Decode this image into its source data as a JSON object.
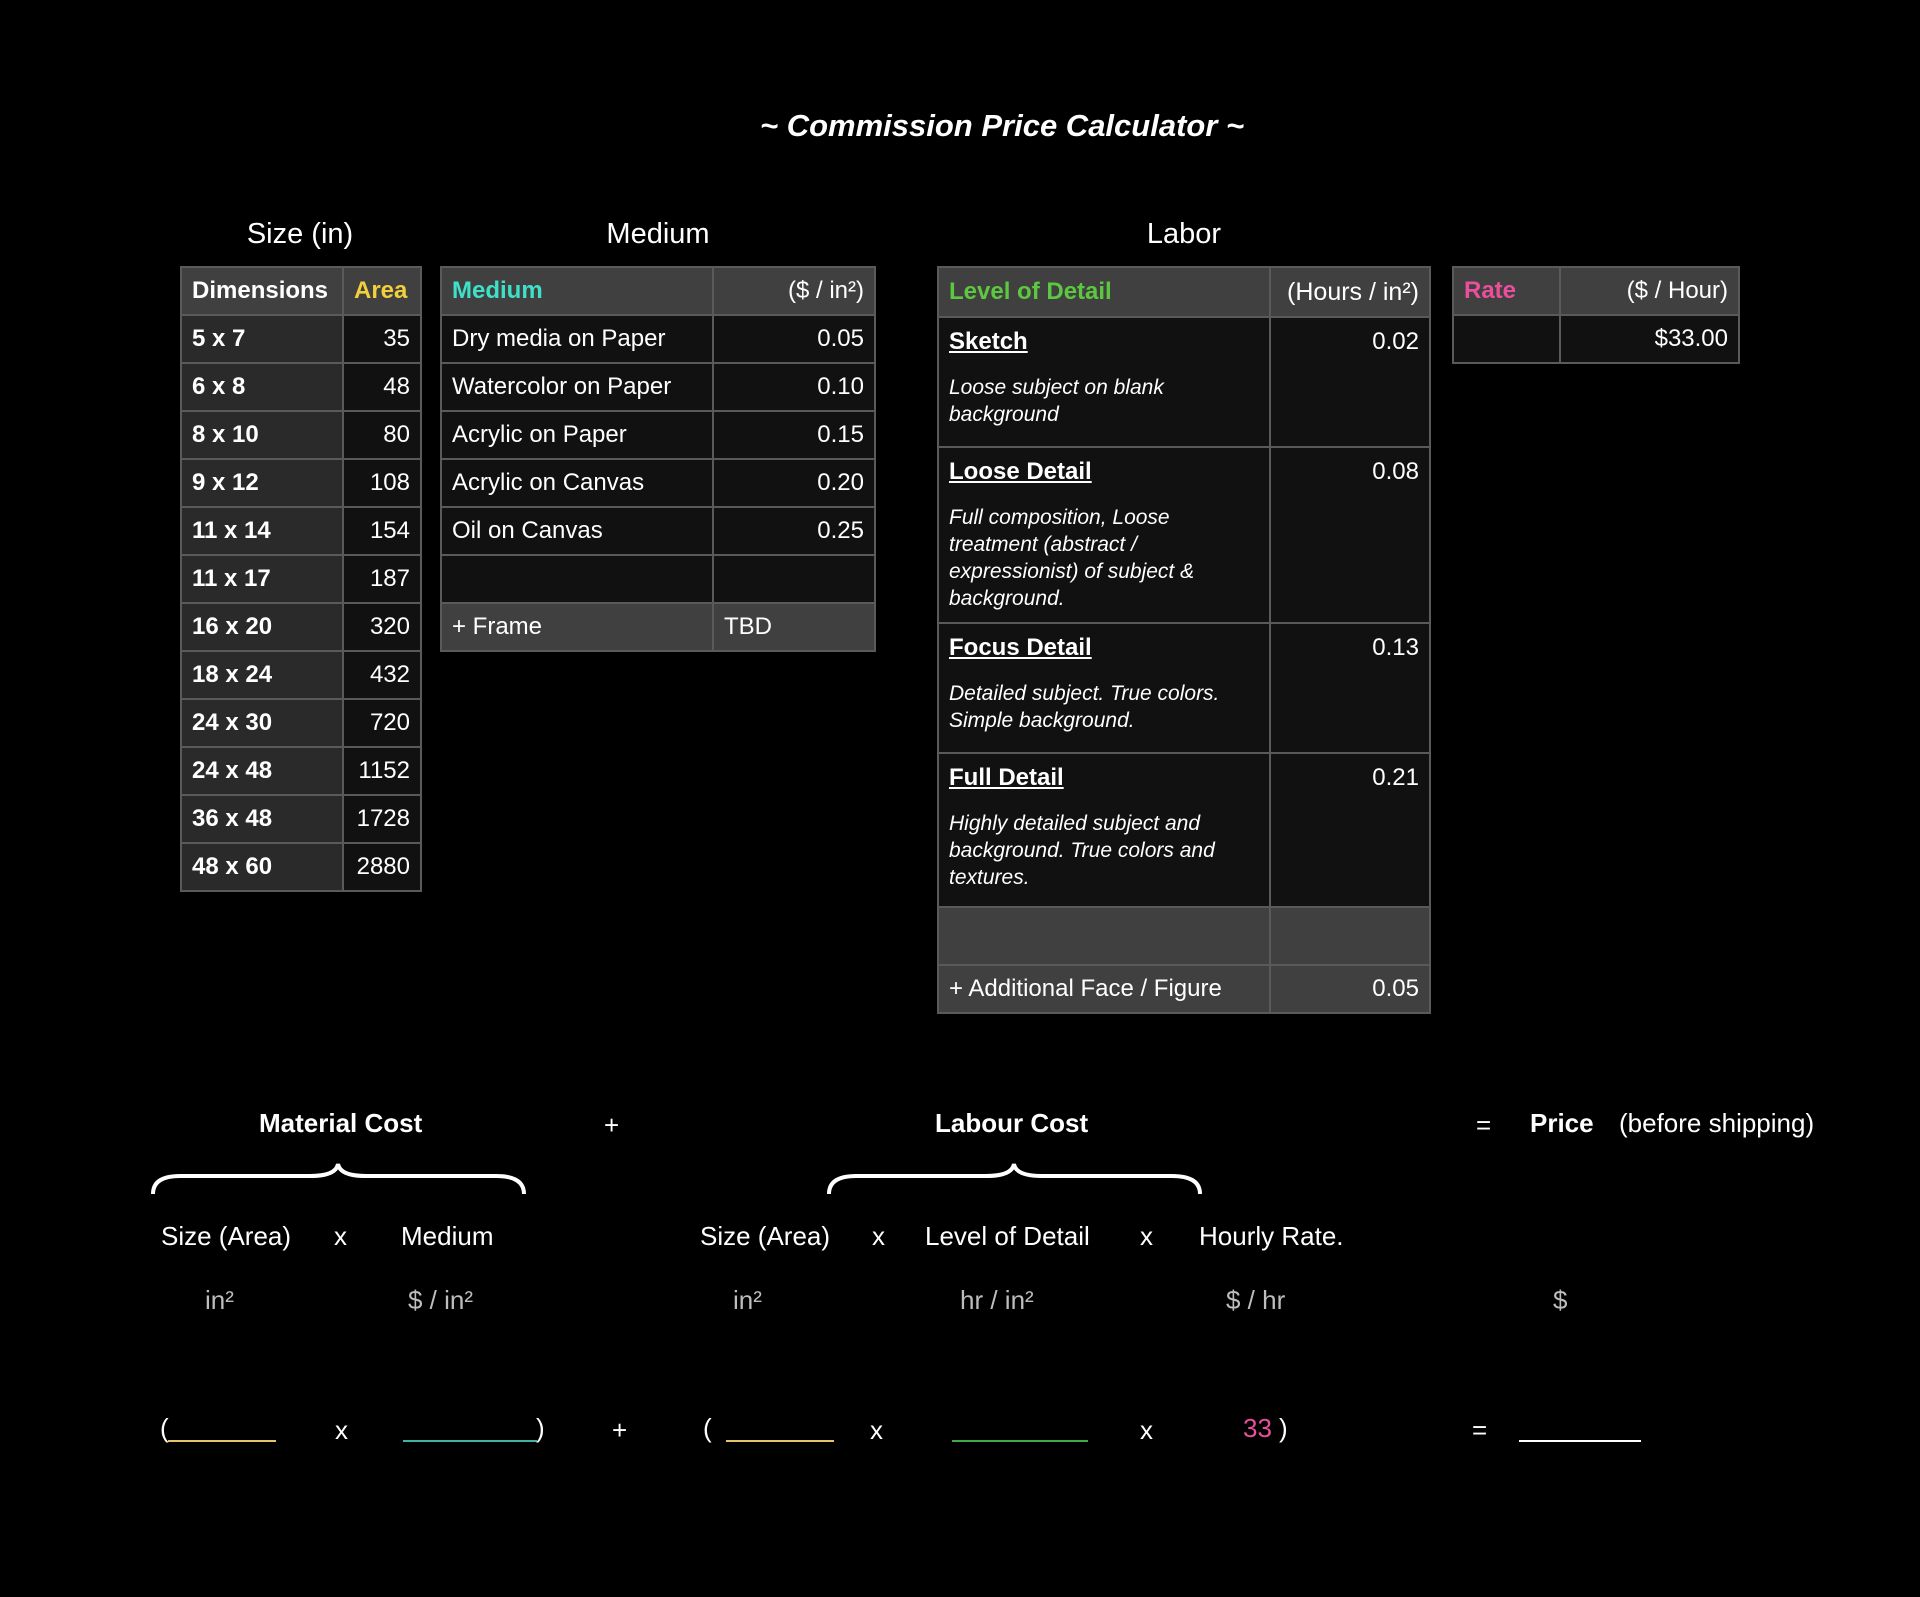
{
  "title": "~ Commission Price Calculator ~",
  "sections": {
    "size": "Size (in)",
    "medium": "Medium",
    "labor": "Labor"
  },
  "size_table": {
    "col_dimensions": "Dimensions",
    "col_area": "Area",
    "rows": [
      {
        "dim": "5 x 7",
        "area": "35"
      },
      {
        "dim": "6 x 8",
        "area": "48"
      },
      {
        "dim": "8 x 10",
        "area": "80"
      },
      {
        "dim": "9 x 12",
        "area": "108"
      },
      {
        "dim": "11 x 14",
        "area": "154"
      },
      {
        "dim": "11 x 17",
        "area": "187"
      },
      {
        "dim": "16 x 20",
        "area": "320"
      },
      {
        "dim": "18 x 24",
        "area": "432"
      },
      {
        "dim": "24 x 30",
        "area": "720"
      },
      {
        "dim": "24 x 48",
        "area": "1152"
      },
      {
        "dim": "36 x 48",
        "area": "1728"
      },
      {
        "dim": "48 x 60",
        "area": "2880"
      }
    ]
  },
  "medium_table": {
    "col_medium": "Medium",
    "col_price": "($ / in²)",
    "rows": [
      {
        "name": "Dry media on Paper",
        "price": "0.05"
      },
      {
        "name": "Watercolor on Paper",
        "price": "0.10"
      },
      {
        "name": "Acrylic on Paper",
        "price": "0.15"
      },
      {
        "name": "Acrylic on Canvas",
        "price": "0.20"
      },
      {
        "name": "Oil on Canvas",
        "price": "0.25"
      }
    ],
    "frame_label": "+ Frame",
    "frame_value": "TBD"
  },
  "labor_table": {
    "col_level": "Level of Detail",
    "col_hours": "(Hours / in²)",
    "rows": [
      {
        "name": "Sketch",
        "desc": "Loose subject on blank background",
        "hours": "0.02"
      },
      {
        "name": "Loose Detail",
        "desc": "Full composition, Loose treatment (abstract / expressionist) of subject & background.",
        "hours": "0.08"
      },
      {
        "name": "Focus Detail",
        "desc": "Detailed subject. True colors. Simple background.",
        "hours": "0.13"
      },
      {
        "name": "Full Detail",
        "desc": "Highly detailed subject and background. True colors and textures.",
        "hours": "0.21"
      }
    ],
    "extra_label": "+ Additional Face / Figure",
    "extra_value": "0.05"
  },
  "rate_table": {
    "col_rate": "Rate",
    "col_unit": "($ / Hour)",
    "value": "$33.00"
  },
  "formula": {
    "material_cost": "Material Cost",
    "plus": "+",
    "labour_cost": "Labour Cost",
    "equals": "=",
    "price": "Price",
    "price_note": "(before shipping)",
    "size_area": "Size (Area)",
    "times": "x",
    "medium": "Medium",
    "level_of_detail": "Level of Detail",
    "hourly_rate": "Hourly Rate.",
    "unit_in2": "in²",
    "unit_dollar_in2": "$ / in²",
    "unit_hr_in2": "hr / in²",
    "unit_dollar_hr": "$ / hr",
    "unit_dollar": "$",
    "open_paren": "(",
    "close_paren": ")",
    "rate_value": "33",
    "rate_close": ")"
  },
  "colors": {
    "area": "#f2d03b",
    "medium": "#3ee0c8",
    "level": "#5cc83f",
    "rate": "#ea4f9c",
    "blank_size": "#e6c56a",
    "blank_medium": "#3fb3a0",
    "blank_level": "#3fa84a",
    "blank_price": "#ffffff"
  }
}
